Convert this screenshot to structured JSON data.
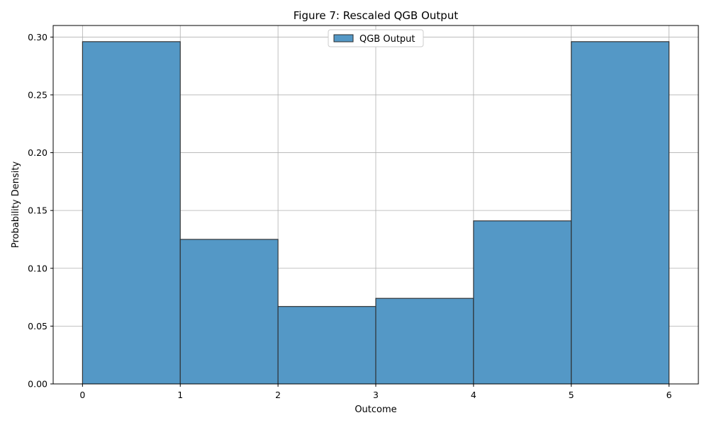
{
  "chart_data": {
    "type": "bar",
    "title": "Figure 7: Rescaled QGB Output",
    "xlabel": "Outcome",
    "ylabel": "Probability Density",
    "bin_edges": [
      0,
      1,
      2,
      3,
      4,
      5,
      6
    ],
    "values": [
      0.296,
      0.125,
      0.067,
      0.074,
      0.141,
      0.296
    ],
    "xlim": [
      -0.3,
      6.3
    ],
    "ylim": [
      0,
      0.31
    ],
    "xticks": [
      0,
      1,
      2,
      3,
      4,
      5,
      6
    ],
    "xtick_labels": [
      "0",
      "1",
      "2",
      "3",
      "4",
      "5",
      "6"
    ],
    "yticks": [
      0,
      0.05,
      0.1,
      0.15,
      0.2,
      0.25,
      0.3
    ],
    "ytick_labels": [
      "0.00",
      "0.05",
      "0.10",
      "0.15",
      "0.20",
      "0.25",
      "0.30"
    ],
    "grid": true,
    "legend": {
      "position": "upper-center",
      "entries": [
        "QGB Output"
      ]
    },
    "series": [
      {
        "name": "QGB Output",
        "color": "#5498c6",
        "edgecolor": "#2b2b2b"
      }
    ]
  }
}
